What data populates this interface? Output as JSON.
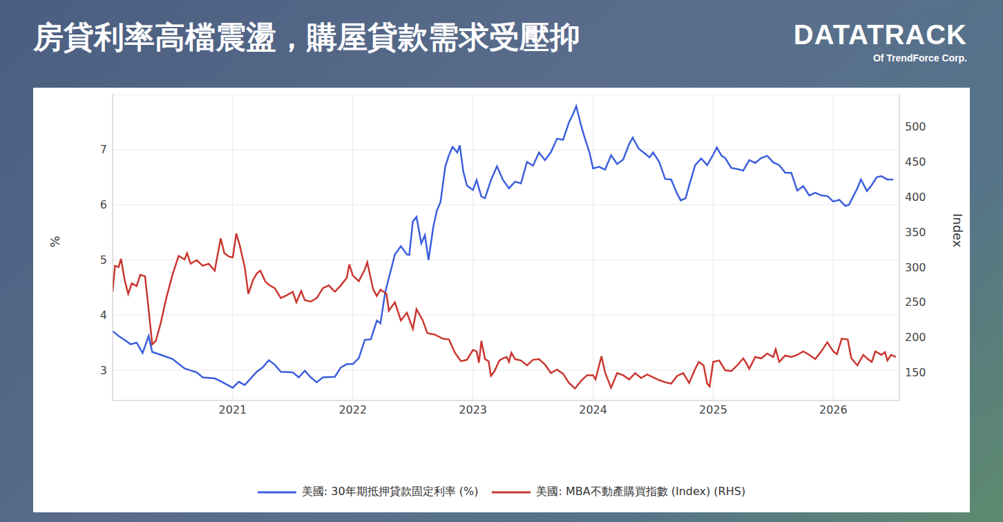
{
  "title": "房貸利率高檔震盪，購屋貸款需求受壓抑",
  "logo": {
    "text": "DATATRACK",
    "subtitle": "Of TrendForce Corp."
  },
  "chart_data": {
    "type": "line",
    "grid": true,
    "legend": "bottom",
    "xlim": [
      2020,
      2026.55
    ],
    "xticks": [
      2021,
      2022,
      2023,
      2024,
      2025,
      2026
    ],
    "y_label": "%",
    "ylim": [
      2.45,
      8.0
    ],
    "yticks": [
      3,
      4,
      5,
      6,
      7
    ],
    "y2_label": "Index",
    "y2lim": [
      110,
      546
    ],
    "y2ticks": [
      150,
      200,
      250,
      300,
      350,
      400,
      450,
      500
    ],
    "series": [
      {
        "name": "美國: 30年期抵押貸款固定利率 (%)",
        "color": "#3b5fdc",
        "x": [
          2020.0,
          2020.05,
          2020.1,
          2020.15,
          2020.2,
          2020.25,
          2020.3,
          2020.33,
          2020.4,
          2020.5,
          2020.6,
          2020.7,
          2020.75,
          2020.85,
          2020.9,
          2021.0,
          2021.05,
          2021.1,
          2021.2,
          2021.25,
          2021.3,
          2021.35,
          2021.4,
          2021.5,
          2021.55,
          2021.6,
          2021.65,
          2021.7,
          2021.75,
          2021.85,
          2021.9,
          2021.95,
          2022.0,
          2022.05,
          2022.1,
          2022.15,
          2022.2,
          2022.23,
          2022.27,
          2022.3,
          2022.35,
          2022.4,
          2022.45,
          2022.47,
          2022.5,
          2022.53,
          2022.57,
          2022.6,
          2022.63,
          2022.67,
          2022.7,
          2022.73,
          2022.77,
          2022.8,
          2022.83,
          2022.87,
          2022.89,
          2022.92,
          2022.95,
          2023.0,
          2023.03,
          2023.07,
          2023.1,
          2023.15,
          2023.2,
          2023.25,
          2023.3,
          2023.35,
          2023.4,
          2023.45,
          2023.5,
          2023.55,
          2023.6,
          2023.65,
          2023.7,
          2023.75,
          2023.8,
          2023.83,
          2023.86,
          2023.9,
          2023.93,
          2023.97,
          2024.0,
          2024.05,
          2024.1,
          2024.15,
          2024.2,
          2024.25,
          2024.3,
          2024.33,
          2024.38,
          2024.42,
          2024.47,
          2024.5,
          2024.55,
          2024.6,
          2024.65,
          2024.7,
          2024.73,
          2024.77,
          2024.8,
          2024.85,
          2024.9,
          2024.95,
          2025.0,
          2025.03,
          2025.07,
          2025.1,
          2025.15,
          2025.2,
          2025.25,
          2025.3,
          2025.35,
          2025.4,
          2025.45,
          2025.5,
          2025.55,
          2025.6,
          2025.65,
          2025.7,
          2025.75,
          2025.8,
          2025.85,
          2025.9,
          2025.95,
          2026.0,
          2026.05,
          2026.1,
          2026.13,
          2026.2,
          2026.23,
          2026.28,
          2026.32,
          2026.36,
          2026.4,
          2026.45,
          2026.5
        ],
        "values": [
          3.71,
          3.62,
          3.55,
          3.47,
          3.5,
          3.31,
          3.62,
          3.33,
          3.28,
          3.2,
          3.03,
          2.96,
          2.87,
          2.85,
          2.8,
          2.68,
          2.79,
          2.73,
          2.97,
          3.05,
          3.18,
          3.1,
          2.97,
          2.96,
          2.87,
          2.99,
          2.87,
          2.78,
          2.87,
          2.88,
          3.05,
          3.11,
          3.11,
          3.22,
          3.55,
          3.56,
          3.9,
          3.85,
          4.42,
          4.67,
          5.1,
          5.25,
          5.1,
          5.09,
          5.7,
          5.78,
          5.3,
          5.45,
          5.0,
          5.6,
          5.9,
          6.05,
          6.7,
          6.9,
          7.05,
          6.95,
          7.08,
          6.6,
          6.35,
          6.27,
          6.45,
          6.15,
          6.12,
          6.45,
          6.7,
          6.45,
          6.3,
          6.42,
          6.39,
          6.78,
          6.71,
          6.95,
          6.81,
          6.96,
          7.2,
          7.18,
          7.5,
          7.63,
          7.79,
          7.44,
          7.22,
          6.95,
          6.66,
          6.69,
          6.64,
          6.9,
          6.74,
          6.82,
          7.1,
          7.22,
          7.02,
          6.95,
          6.86,
          6.95,
          6.78,
          6.47,
          6.46,
          6.2,
          6.08,
          6.12,
          6.35,
          6.72,
          6.84,
          6.72,
          6.91,
          7.04,
          6.89,
          6.85,
          6.67,
          6.65,
          6.62,
          6.81,
          6.76,
          6.85,
          6.89,
          6.77,
          6.72,
          6.58,
          6.58,
          6.26,
          6.34,
          6.17,
          6.22,
          6.17,
          6.16,
          6.06,
          6.09,
          5.98,
          6.0,
          6.3,
          6.46,
          6.25,
          6.36,
          6.5,
          6.52,
          6.46,
          6.46
        ]
      },
      {
        "name": "美國: MBA不動產購買指數 (Index) (RHS)",
        "color": "#c9362f",
        "axis": "y2",
        "x": [
          2020.0,
          2020.02,
          2020.05,
          2020.07,
          2020.1,
          2020.13,
          2020.16,
          2020.2,
          2020.23,
          2020.27,
          2020.3,
          2020.33,
          2020.36,
          2020.4,
          2020.45,
          2020.5,
          2020.55,
          2020.6,
          2020.62,
          2020.65,
          2020.7,
          2020.75,
          2020.8,
          2020.85,
          2020.9,
          2020.93,
          2020.97,
          2021.0,
          2021.03,
          2021.06,
          2021.1,
          2021.13,
          2021.17,
          2021.2,
          2021.23,
          2021.27,
          2021.3,
          2021.35,
          2021.4,
          2021.45,
          2021.5,
          2021.53,
          2021.57,
          2021.6,
          2021.65,
          2021.7,
          2021.75,
          2021.8,
          2021.85,
          2021.9,
          2021.95,
          2021.97,
          2022.0,
          2022.05,
          2022.1,
          2022.12,
          2022.17,
          2022.2,
          2022.23,
          2022.28,
          2022.3,
          2022.35,
          2022.4,
          2022.45,
          2022.5,
          2022.53,
          2022.58,
          2022.62,
          2022.68,
          2022.75,
          2022.8,
          2022.85,
          2022.9,
          2022.95,
          2023.0,
          2023.03,
          2023.05,
          2023.07,
          2023.1,
          2023.13,
          2023.15,
          2023.18,
          2023.22,
          2023.25,
          2023.28,
          2023.3,
          2023.32,
          2023.35,
          2023.4,
          2023.45,
          2023.5,
          2023.55,
          2023.6,
          2023.65,
          2023.7,
          2023.75,
          2023.8,
          2023.85,
          2023.9,
          2023.95,
          2024.0,
          2024.02,
          2024.07,
          2024.1,
          2024.15,
          2024.2,
          2024.25,
          2024.3,
          2024.35,
          2024.4,
          2024.45,
          2024.5,
          2024.55,
          2024.6,
          2024.65,
          2024.7,
          2024.75,
          2024.8,
          2024.85,
          2024.88,
          2024.92,
          2024.95,
          2024.97,
          2025.0,
          2025.05,
          2025.1,
          2025.15,
          2025.2,
          2025.25,
          2025.28,
          2025.3,
          2025.35,
          2025.4,
          2025.45,
          2025.5,
          2025.52,
          2025.55,
          2025.6,
          2025.65,
          2025.7,
          2025.75,
          2025.8,
          2025.85,
          2025.9,
          2025.95,
          2026.0,
          2026.03,
          2026.07,
          2026.12,
          2026.15,
          2026.2,
          2026.25,
          2026.28,
          2026.32,
          2026.35,
          2026.4,
          2026.43,
          2026.45,
          2026.48,
          2026.52
        ],
        "values": [
          265,
          302,
          300,
          312,
          282,
          262,
          277,
          273,
          289,
          287,
          240,
          190,
          195,
          220,
          258,
          290,
          316,
          311,
          320,
          305,
          310,
          302,
          305,
          295,
          341,
          320,
          315,
          314,
          348,
          330,
          300,
          262,
          282,
          291,
          295,
          280,
          275,
          270,
          256,
          260,
          265,
          250,
          266,
          253,
          251,
          256,
          270,
          274,
          265,
          274,
          285,
          304,
          288,
          280,
          297,
          307,
          268,
          259,
          268,
          262,
          238,
          250,
          224,
          235,
          212,
          240,
          225,
          206,
          204,
          198,
          197,
          178,
          166,
          168,
          182,
          180,
          164,
          195,
          169,
          166,
          145,
          152,
          167,
          170,
          172,
          165,
          178,
          169,
          167,
          160,
          168,
          169,
          161,
          149,
          154,
          148,
          135,
          127,
          138,
          146,
          146,
          140,
          173,
          150,
          128,
          149,
          146,
          140,
          149,
          142,
          147,
          143,
          139,
          136,
          134,
          145,
          149,
          135,
          155,
          165,
          160,
          134,
          130,
          165,
          167,
          153,
          152,
          160,
          170,
          162,
          155,
          172,
          170,
          177,
          172,
          183,
          165,
          174,
          172,
          175,
          180,
          175,
          169,
          180,
          193,
          180,
          176,
          198,
          197,
          170,
          160,
          175,
          170,
          165,
          180,
          175,
          179,
          167,
          175,
          172
        ]
      }
    ]
  }
}
